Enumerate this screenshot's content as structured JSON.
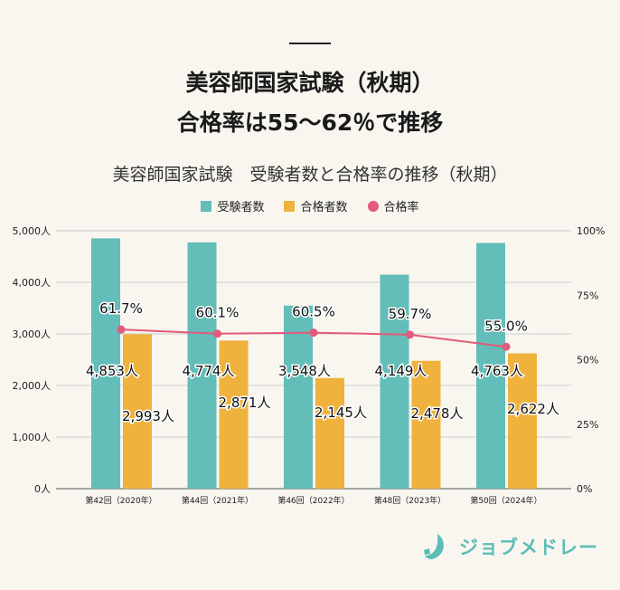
{
  "header": {
    "title_line1": "美容師国家試験（秋期）",
    "title_line2": "合格率は55～62％で推移"
  },
  "chart_data": {
    "type": "bar",
    "title": "美容師国家試験　受験者数と合格率の推移（秋期）",
    "categories": [
      "第42回（2020年）",
      "第44回（2021年）",
      "第46回（2022年）",
      "第48回（2023年）",
      "第50回（2024年）"
    ],
    "series": [
      {
        "name": "受験者数",
        "type": "bar",
        "axis": "left",
        "color": "#63bdb8",
        "values": [
          4853,
          4774,
          3548,
          4149,
          4763
        ],
        "labels": [
          "4,853人",
          "4,774人",
          "3,548人",
          "4,149人",
          "4,763人"
        ]
      },
      {
        "name": "合格者数",
        "type": "bar",
        "axis": "left",
        "color": "#efb23c",
        "values": [
          2993,
          2871,
          2145,
          2478,
          2622
        ],
        "labels": [
          "2,993人",
          "2,871人",
          "2,145人",
          "2,478人",
          "2,622人"
        ]
      },
      {
        "name": "合格率",
        "type": "line",
        "axis": "right",
        "color": "#e35a7a",
        "values": [
          61.7,
          60.1,
          60.5,
          59.7,
          55.0
        ],
        "labels": [
          "61.7%",
          "60.1%",
          "60.5%",
          "59.7%",
          "55.0%"
        ]
      }
    ],
    "y_left": {
      "range": [
        0,
        5000
      ],
      "ticks": [
        "0人",
        "1,000人",
        "2,000人",
        "3,000人",
        "4,000人",
        "5,000人"
      ]
    },
    "y_right": {
      "range": [
        0,
        100
      ],
      "ticks": [
        "0%",
        "25%",
        "50%",
        "75%",
        "100%"
      ]
    },
    "grid": true,
    "legend": "top-center"
  },
  "logo": {
    "text": "ジョブメドレー",
    "color": "#5bbdb8"
  }
}
